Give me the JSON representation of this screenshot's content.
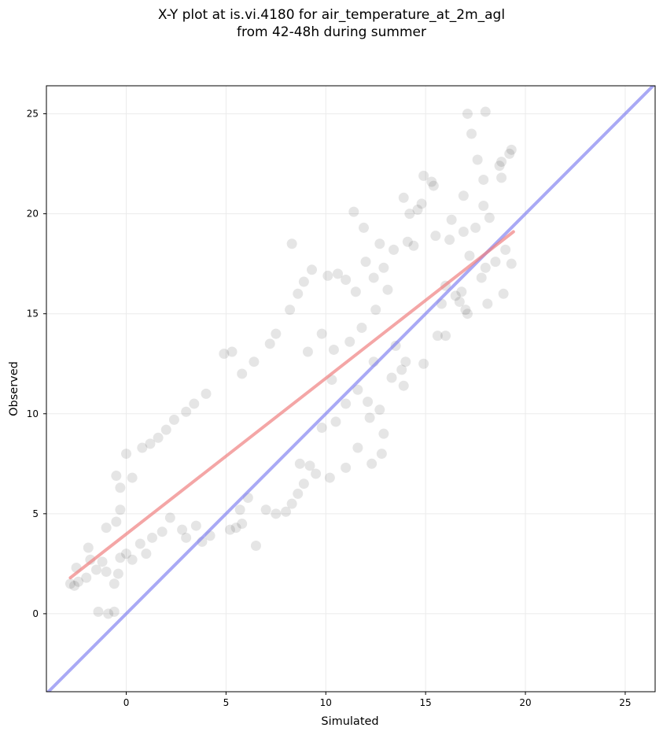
{
  "title_lines": [
    "X-Y plot at is.vi.4180 for air_temperature_at_2m_agl",
    "from 42-48h during summer"
  ],
  "chart_data": {
    "type": "scatter",
    "title": "X-Y plot at is.vi.4180 for air_temperature_at_2m_agl\nfrom 42-48h during summer",
    "xlabel": "Simulated",
    "ylabel": "Observed",
    "xlim": [
      -4,
      26.5
    ],
    "ylim": [
      -3.9,
      26.4
    ],
    "xticks": [
      0,
      5,
      10,
      15,
      20,
      25
    ],
    "yticks": [
      0,
      5,
      10,
      15,
      20,
      25
    ],
    "grid": true,
    "points_color": "#000000",
    "points_alpha": 0.1,
    "series": [
      {
        "kind": "scatter",
        "points": [
          [
            17.1,
            25.0
          ],
          [
            18.0,
            25.1
          ],
          [
            17.3,
            24.0
          ],
          [
            19.3,
            23.2
          ],
          [
            19.2,
            23.0
          ],
          [
            17.6,
            22.7
          ],
          [
            18.8,
            22.6
          ],
          [
            18.7,
            22.4
          ],
          [
            14.9,
            21.9
          ],
          [
            15.3,
            21.6
          ],
          [
            15.4,
            21.4
          ],
          [
            18.8,
            21.8
          ],
          [
            17.9,
            21.7
          ],
          [
            16.9,
            20.9
          ],
          [
            13.9,
            20.8
          ],
          [
            11.4,
            20.1
          ],
          [
            14.8,
            20.5
          ],
          [
            14.6,
            20.2
          ],
          [
            14.2,
            20.0
          ],
          [
            17.9,
            20.4
          ],
          [
            18.2,
            19.8
          ],
          [
            17.5,
            19.3
          ],
          [
            16.9,
            19.1
          ],
          [
            16.3,
            19.7
          ],
          [
            15.5,
            18.9
          ],
          [
            16.2,
            18.7
          ],
          [
            11.9,
            19.3
          ],
          [
            12.7,
            18.5
          ],
          [
            13.4,
            18.2
          ],
          [
            14.1,
            18.6
          ],
          [
            14.4,
            18.4
          ],
          [
            8.3,
            18.5
          ],
          [
            17.2,
            17.9
          ],
          [
            18.0,
            17.3
          ],
          [
            18.5,
            17.6
          ],
          [
            19.0,
            18.2
          ],
          [
            19.3,
            17.5
          ],
          [
            18.9,
            16.0
          ],
          [
            17.8,
            16.8
          ],
          [
            16.8,
            16.1
          ],
          [
            16.0,
            16.4
          ],
          [
            16.5,
            15.9
          ],
          [
            15.8,
            15.5
          ],
          [
            17.0,
            15.2
          ],
          [
            16.7,
            15.6
          ],
          [
            18.1,
            15.5
          ],
          [
            17.1,
            15.0
          ],
          [
            16.0,
            13.9
          ],
          [
            15.6,
            13.9
          ],
          [
            14.9,
            12.5
          ],
          [
            14.0,
            12.6
          ],
          [
            13.9,
            11.4
          ],
          [
            13.3,
            11.8
          ],
          [
            12.7,
            10.2
          ],
          [
            12.9,
            9.0
          ],
          [
            12.8,
            8.0
          ],
          [
            12.3,
            7.5
          ],
          [
            12.2,
            9.8
          ],
          [
            11.6,
            8.3
          ],
          [
            11.0,
            7.3
          ],
          [
            10.2,
            6.8
          ],
          [
            9.5,
            7.0
          ],
          [
            9.2,
            7.4
          ],
          [
            8.9,
            6.5
          ],
          [
            8.7,
            7.5
          ],
          [
            8.6,
            6.0
          ],
          [
            8.3,
            5.5
          ],
          [
            8.0,
            5.1
          ],
          [
            7.5,
            5.0
          ],
          [
            7.0,
            5.2
          ],
          [
            6.5,
            3.4
          ],
          [
            5.8,
            4.5
          ],
          [
            5.5,
            4.3
          ],
          [
            5.2,
            4.2
          ],
          [
            5.7,
            5.2
          ],
          [
            6.1,
            5.8
          ],
          [
            4.2,
            3.9
          ],
          [
            3.8,
            3.6
          ],
          [
            3.5,
            4.4
          ],
          [
            3.0,
            3.8
          ],
          [
            2.8,
            4.2
          ],
          [
            2.2,
            4.8
          ],
          [
            1.8,
            4.1
          ],
          [
            1.3,
            3.8
          ],
          [
            1.0,
            3.0
          ],
          [
            0.7,
            3.5
          ],
          [
            0.3,
            2.7
          ],
          [
            0.0,
            3.0
          ],
          [
            -0.3,
            2.8
          ],
          [
            -0.4,
            2.0
          ],
          [
            -0.6,
            1.5
          ],
          [
            -0.6,
            0.1
          ],
          [
            -1.4,
            0.1
          ],
          [
            -0.9,
            0.0
          ],
          [
            -1.0,
            2.1
          ],
          [
            -1.2,
            2.6
          ],
          [
            -1.5,
            2.2
          ],
          [
            -1.8,
            2.7
          ],
          [
            -2.0,
            1.8
          ],
          [
            -2.4,
            1.6
          ],
          [
            -2.6,
            1.4
          ],
          [
            -2.8,
            1.5
          ],
          [
            -2.5,
            2.3
          ],
          [
            -1.9,
            3.3
          ],
          [
            -1.0,
            4.3
          ],
          [
            -0.5,
            4.6
          ],
          [
            -0.3,
            5.2
          ],
          [
            0.0,
            8.0
          ],
          [
            -0.5,
            6.9
          ],
          [
            -0.3,
            6.3
          ],
          [
            0.3,
            6.8
          ],
          [
            0.8,
            8.3
          ],
          [
            1.2,
            8.5
          ],
          [
            1.6,
            8.8
          ],
          [
            2.0,
            9.2
          ],
          [
            2.4,
            9.7
          ],
          [
            3.0,
            10.1
          ],
          [
            3.4,
            10.5
          ],
          [
            4.0,
            11.0
          ],
          [
            4.9,
            13.0
          ],
          [
            5.3,
            13.1
          ],
          [
            5.8,
            12.0
          ],
          [
            6.4,
            12.6
          ],
          [
            7.2,
            13.5
          ],
          [
            7.5,
            14.0
          ],
          [
            8.2,
            15.2
          ],
          [
            8.6,
            16.0
          ],
          [
            8.9,
            16.6
          ],
          [
            9.3,
            17.2
          ],
          [
            10.1,
            16.9
          ],
          [
            10.6,
            17.0
          ],
          [
            11.0,
            16.7
          ],
          [
            11.5,
            16.1
          ],
          [
            12.0,
            17.6
          ],
          [
            12.4,
            16.8
          ],
          [
            12.9,
            17.3
          ],
          [
            13.1,
            16.2
          ],
          [
            12.5,
            15.2
          ],
          [
            11.8,
            14.3
          ],
          [
            11.2,
            13.6
          ],
          [
            10.4,
            13.2
          ],
          [
            9.8,
            14.0
          ],
          [
            9.1,
            13.1
          ],
          [
            10.3,
            11.7
          ],
          [
            11.6,
            11.2
          ],
          [
            12.4,
            12.6
          ],
          [
            13.5,
            13.4
          ],
          [
            13.8,
            12.2
          ],
          [
            12.1,
            10.6
          ],
          [
            11.0,
            10.5
          ],
          [
            10.5,
            9.6
          ],
          [
            9.8,
            9.3
          ]
        ]
      }
    ],
    "fit_line": {
      "color": "#f08080",
      "from": [
        -2.8,
        1.8
      ],
      "to": [
        19.4,
        19.1
      ]
    },
    "identity_line": {
      "color": "#7b7bf0",
      "from": [
        -4,
        -4
      ],
      "to": [
        26.5,
        26.5
      ]
    }
  }
}
